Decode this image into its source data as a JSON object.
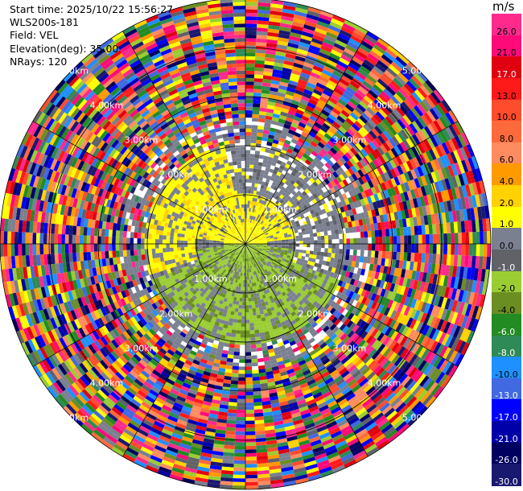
{
  "header": {
    "start_time": "Start time: 2025/10/22 15:56:27",
    "instrument": "WLS200s-181",
    "field": "Field: VEL",
    "elevation": "Elevation(deg): 35.00",
    "nrays": "NRays: 120"
  },
  "colorbar": {
    "unit": "m/s",
    "ticks": [
      "26.0",
      "21.0",
      "17.0",
      "13.0",
      "10.0",
      "8.0",
      "6.0",
      "4.0",
      "2.0",
      "1.0",
      "0.0",
      "-1.0",
      "-2.0",
      "-4.0",
      "-6.0",
      "-8.0",
      "-10.0",
      "-13.0",
      "-17.0",
      "-21.0",
      "-26.0",
      "-30.0"
    ],
    "colors": [
      "#ff2a8c",
      "#ff0a78",
      "#e00010",
      "#ff1a1a",
      "#ff4c2c",
      "#ff6a3c",
      "#ff8c60",
      "#ff9a00",
      "#ffd200",
      "#ffff00",
      "#7a8090",
      "#606268",
      "#9acd32",
      "#6b8e23",
      "#228b22",
      "#2e8b57",
      "#1e90ff",
      "#4169e1",
      "#0000ff",
      "#0000a8",
      "#000060",
      "#191970"
    ]
  },
  "chart_data": {
    "type": "heatmap",
    "projection": "polar PPI",
    "field": "VEL",
    "units": "m/s",
    "nrays": 120,
    "elevation_deg": 35.0,
    "color_range": [
      -30.0,
      26.0
    ],
    "grid": true,
    "range_ring_labels_km": [
      "1.00km",
      "2.00km",
      "3.00km",
      "4.00km",
      "5.00km"
    ],
    "range_rings_km": [
      1,
      2,
      3,
      4,
      5
    ],
    "max_range_km": 5.0,
    "azimuth_spokes_deg": [
      0,
      30,
      60,
      90,
      120,
      150,
      180,
      210,
      240,
      270,
      300,
      330
    ]
  }
}
